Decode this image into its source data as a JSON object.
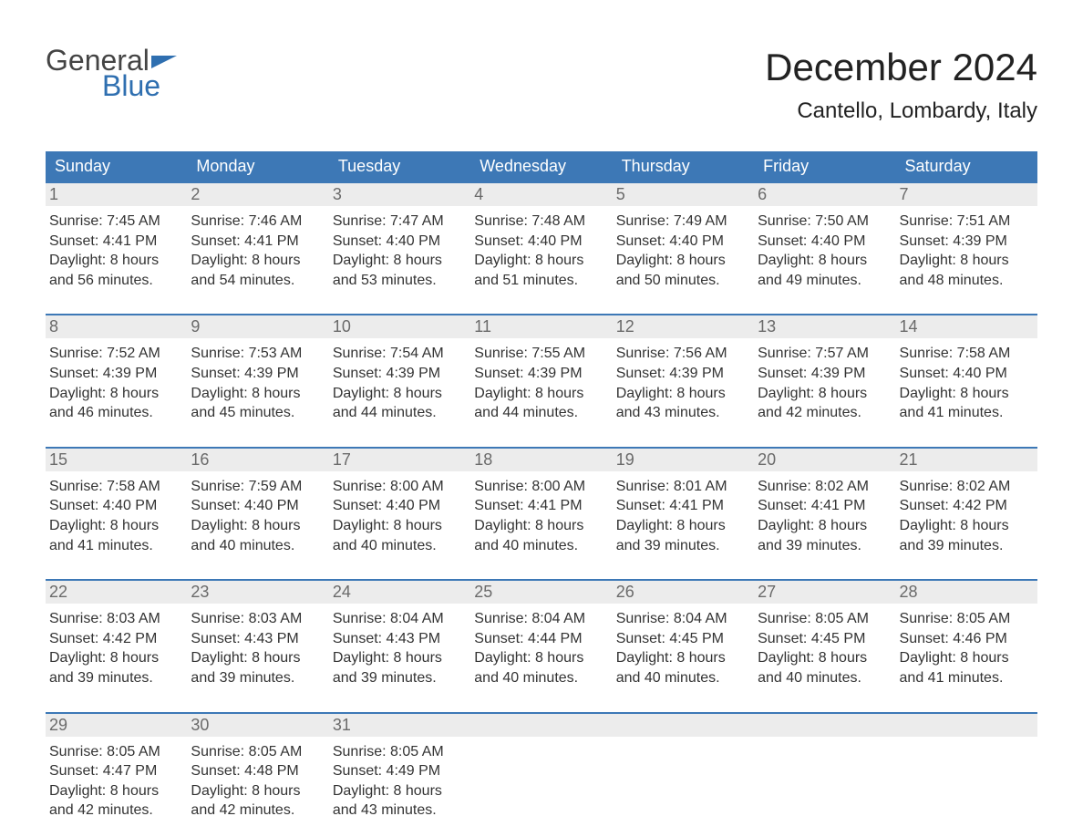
{
  "logo": {
    "word1": "General",
    "word2": "Blue"
  },
  "header": {
    "title": "December 2024",
    "location": "Cantello, Lombardy, Italy"
  },
  "colors": {
    "header_bg": "#3d78b6",
    "header_text": "#ffffff",
    "week_border": "#3d78b6",
    "daynum_bg": "#ececec",
    "daynum_text": "#6a6a6a",
    "body_text": "#333333",
    "logo_accent": "#2f6fb0",
    "page_bg": "#ffffff"
  },
  "font_sizes": {
    "title": 42,
    "subtitle": 24,
    "day_header": 18,
    "daynum": 18,
    "cell": 16,
    "logo": 32
  },
  "day_names": [
    "Sunday",
    "Monday",
    "Tuesday",
    "Wednesday",
    "Thursday",
    "Friday",
    "Saturday"
  ],
  "labels": {
    "sunrise": "Sunrise:",
    "sunset": "Sunset:",
    "daylight": "Daylight:",
    "hours": "hours",
    "and": "and",
    "minutes": "minutes."
  },
  "weeks": [
    [
      {
        "n": "1",
        "sunrise": "7:45 AM",
        "sunset": "4:41 PM",
        "dh": "8",
        "dm": "56"
      },
      {
        "n": "2",
        "sunrise": "7:46 AM",
        "sunset": "4:41 PM",
        "dh": "8",
        "dm": "54"
      },
      {
        "n": "3",
        "sunrise": "7:47 AM",
        "sunset": "4:40 PM",
        "dh": "8",
        "dm": "53"
      },
      {
        "n": "4",
        "sunrise": "7:48 AM",
        "sunset": "4:40 PM",
        "dh": "8",
        "dm": "51"
      },
      {
        "n": "5",
        "sunrise": "7:49 AM",
        "sunset": "4:40 PM",
        "dh": "8",
        "dm": "50"
      },
      {
        "n": "6",
        "sunrise": "7:50 AM",
        "sunset": "4:40 PM",
        "dh": "8",
        "dm": "49"
      },
      {
        "n": "7",
        "sunrise": "7:51 AM",
        "sunset": "4:39 PM",
        "dh": "8",
        "dm": "48"
      }
    ],
    [
      {
        "n": "8",
        "sunrise": "7:52 AM",
        "sunset": "4:39 PM",
        "dh": "8",
        "dm": "46"
      },
      {
        "n": "9",
        "sunrise": "7:53 AM",
        "sunset": "4:39 PM",
        "dh": "8",
        "dm": "45"
      },
      {
        "n": "10",
        "sunrise": "7:54 AM",
        "sunset": "4:39 PM",
        "dh": "8",
        "dm": "44"
      },
      {
        "n": "11",
        "sunrise": "7:55 AM",
        "sunset": "4:39 PM",
        "dh": "8",
        "dm": "44"
      },
      {
        "n": "12",
        "sunrise": "7:56 AM",
        "sunset": "4:39 PM",
        "dh": "8",
        "dm": "43"
      },
      {
        "n": "13",
        "sunrise": "7:57 AM",
        "sunset": "4:39 PM",
        "dh": "8",
        "dm": "42"
      },
      {
        "n": "14",
        "sunrise": "7:58 AM",
        "sunset": "4:40 PM",
        "dh": "8",
        "dm": "41"
      }
    ],
    [
      {
        "n": "15",
        "sunrise": "7:58 AM",
        "sunset": "4:40 PM",
        "dh": "8",
        "dm": "41"
      },
      {
        "n": "16",
        "sunrise": "7:59 AM",
        "sunset": "4:40 PM",
        "dh": "8",
        "dm": "40"
      },
      {
        "n": "17",
        "sunrise": "8:00 AM",
        "sunset": "4:40 PM",
        "dh": "8",
        "dm": "40"
      },
      {
        "n": "18",
        "sunrise": "8:00 AM",
        "sunset": "4:41 PM",
        "dh": "8",
        "dm": "40"
      },
      {
        "n": "19",
        "sunrise": "8:01 AM",
        "sunset": "4:41 PM",
        "dh": "8",
        "dm": "39"
      },
      {
        "n": "20",
        "sunrise": "8:02 AM",
        "sunset": "4:41 PM",
        "dh": "8",
        "dm": "39"
      },
      {
        "n": "21",
        "sunrise": "8:02 AM",
        "sunset": "4:42 PM",
        "dh": "8",
        "dm": "39"
      }
    ],
    [
      {
        "n": "22",
        "sunrise": "8:03 AM",
        "sunset": "4:42 PM",
        "dh": "8",
        "dm": "39"
      },
      {
        "n": "23",
        "sunrise": "8:03 AM",
        "sunset": "4:43 PM",
        "dh": "8",
        "dm": "39"
      },
      {
        "n": "24",
        "sunrise": "8:04 AM",
        "sunset": "4:43 PM",
        "dh": "8",
        "dm": "39"
      },
      {
        "n": "25",
        "sunrise": "8:04 AM",
        "sunset": "4:44 PM",
        "dh": "8",
        "dm": "40"
      },
      {
        "n": "26",
        "sunrise": "8:04 AM",
        "sunset": "4:45 PM",
        "dh": "8",
        "dm": "40"
      },
      {
        "n": "27",
        "sunrise": "8:05 AM",
        "sunset": "4:45 PM",
        "dh": "8",
        "dm": "40"
      },
      {
        "n": "28",
        "sunrise": "8:05 AM",
        "sunset": "4:46 PM",
        "dh": "8",
        "dm": "41"
      }
    ],
    [
      {
        "n": "29",
        "sunrise": "8:05 AM",
        "sunset": "4:47 PM",
        "dh": "8",
        "dm": "42"
      },
      {
        "n": "30",
        "sunrise": "8:05 AM",
        "sunset": "4:48 PM",
        "dh": "8",
        "dm": "42"
      },
      {
        "n": "31",
        "sunrise": "8:05 AM",
        "sunset": "4:49 PM",
        "dh": "8",
        "dm": "43"
      },
      {
        "empty": true
      },
      {
        "empty": true
      },
      {
        "empty": true
      },
      {
        "empty": true
      }
    ]
  ]
}
